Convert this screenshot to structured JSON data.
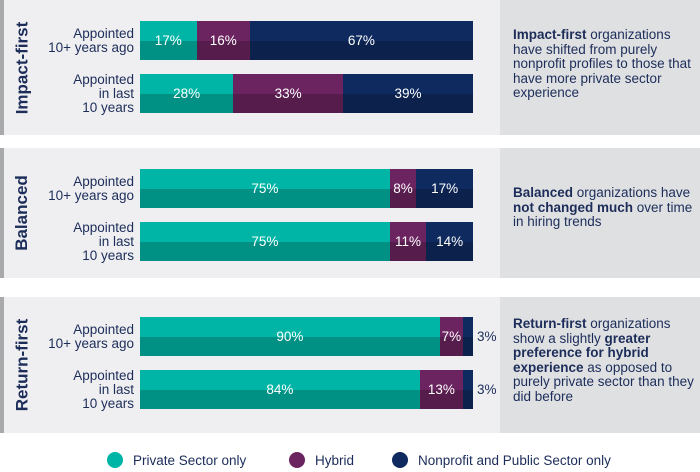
{
  "colors": {
    "private": "#00b5a5",
    "hybrid": "#6b2460",
    "nonprofit": "#0f2a5e"
  },
  "chart_data": {
    "type": "bar",
    "orientation": "horizontal-stacked-100",
    "series_names": [
      "Private Sector only",
      "Hybrid",
      "Nonprofit and Public Sector only"
    ],
    "groups": [
      {
        "name": "Impact-first",
        "rows": [
          {
            "label": "Appointed\n10+ years ago",
            "values": [
              17,
              16,
              67
            ]
          },
          {
            "label": "Appointed\nin last\n10 years",
            "values": [
              28,
              33,
              39
            ]
          }
        ],
        "description": [
          {
            "text": "Impact-first",
            "bold": true
          },
          {
            "text": " organizations have shifted from purely nonprofit profiles to those that have more private sector experience",
            "bold": false
          }
        ]
      },
      {
        "name": "Balanced",
        "rows": [
          {
            "label": "Appointed\n10+ years ago",
            "values": [
              75,
              8,
              17
            ]
          },
          {
            "label": "Appointed\nin last\n10 years",
            "values": [
              75,
              11,
              14
            ]
          }
        ],
        "description": [
          {
            "text": "Balanced",
            "bold": true
          },
          {
            "text": " organizations have ",
            "bold": false
          },
          {
            "text": "not changed much",
            "bold": true
          },
          {
            "text": " over time in hiring trends",
            "bold": false
          }
        ]
      },
      {
        "name": "Return-first",
        "rows": [
          {
            "label": "Appointed\n10+ years ago",
            "values": [
              90,
              7,
              3
            ]
          },
          {
            "label": "Appointed\nin last\n10 years",
            "values": [
              84,
              13,
              3
            ]
          }
        ],
        "description": [
          {
            "text": "Return-first",
            "bold": true
          },
          {
            "text": " organizations show a slightly ",
            "bold": false
          },
          {
            "text": "greater preference for hybrid experience",
            "bold": true
          },
          {
            "text": " as opposed to purely private sector than they did before",
            "bold": false
          }
        ]
      }
    ],
    "legend": {
      "position": "bottom",
      "entries": [
        "Private Sector only",
        "Hybrid",
        "Nonprofit and Public Sector only"
      ]
    },
    "value_suffix": "%"
  }
}
